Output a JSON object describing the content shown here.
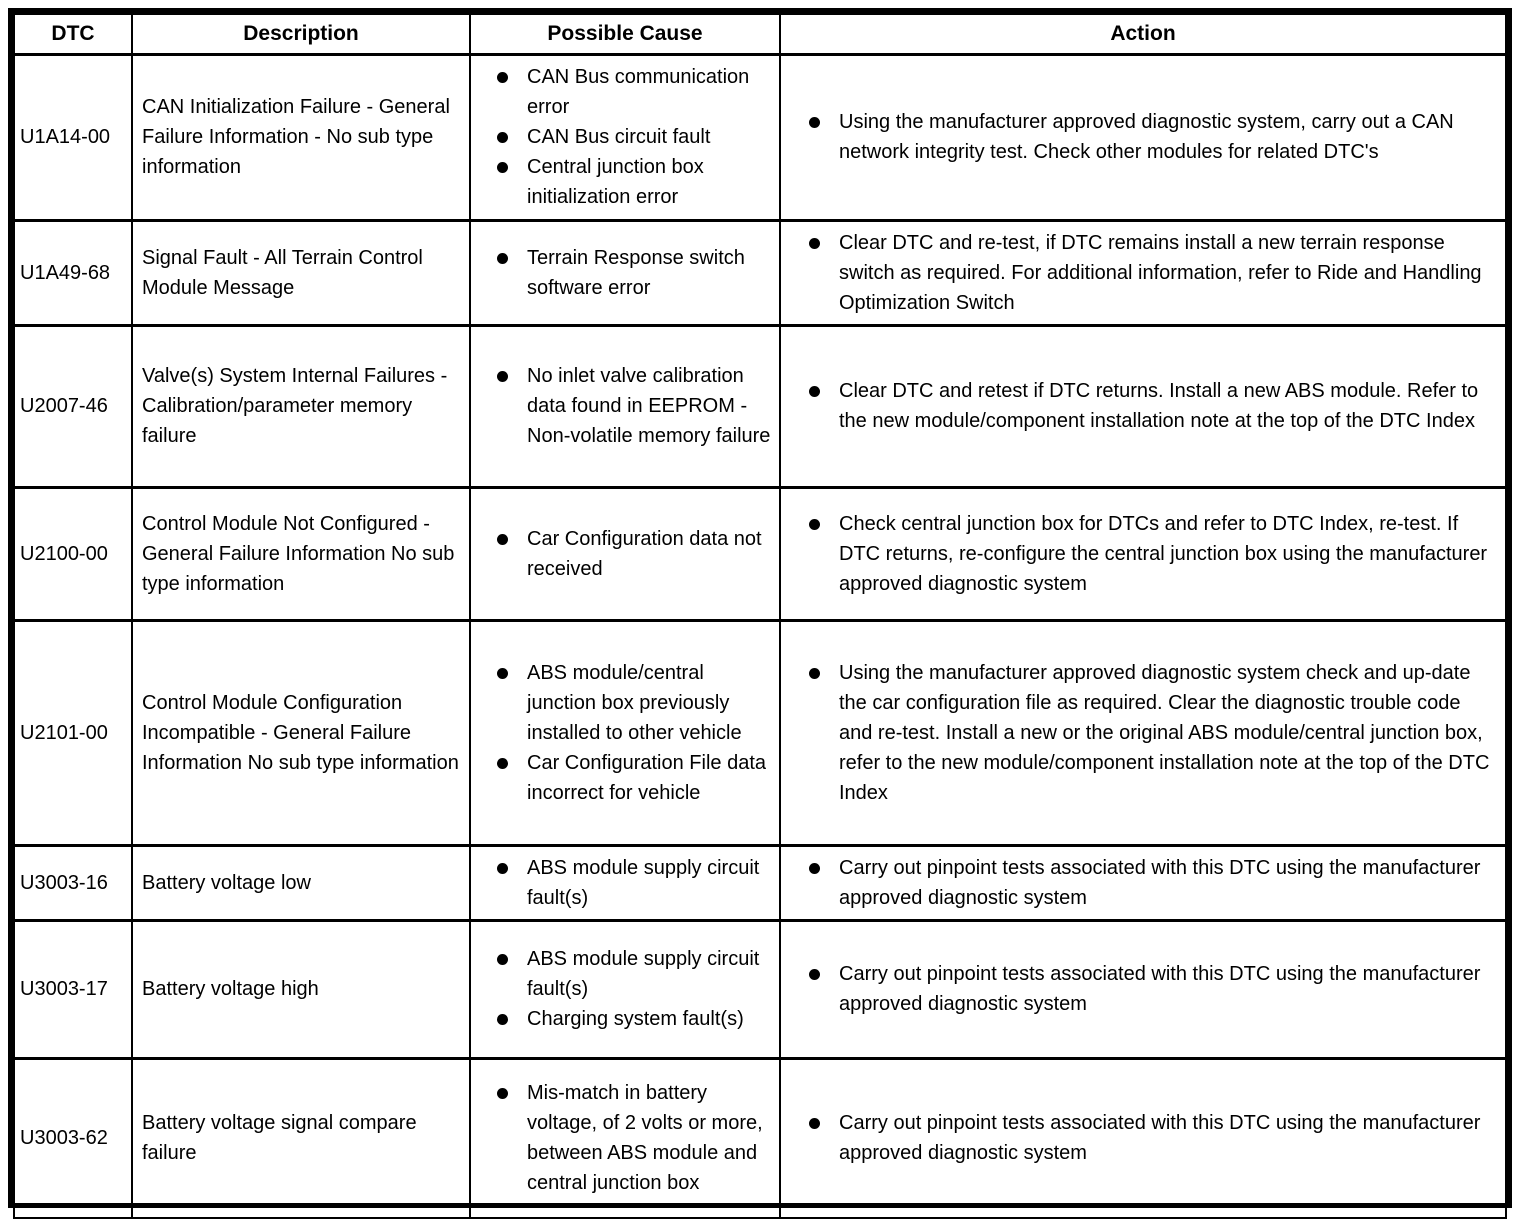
{
  "table": {
    "headers": [
      "DTC",
      "Description",
      "Possible Cause",
      "Action"
    ],
    "rows": [
      {
        "dtc": "U1A14-00",
        "description": "CAN Initialization Failure - General Failure Information - No sub type information",
        "causes": [
          "CAN Bus communication error",
          "CAN Bus circuit fault",
          "Central junction box initialization error"
        ],
        "actions": [
          "Using the manufacturer approved diagnostic system, carry out a CAN network integrity test. Check other modules for related DTC's"
        ]
      },
      {
        "dtc": "U1A49-68",
        "description": "Signal Fault - All Terrain Control Module Message",
        "causes": [
          "Terrain Response switch software error"
        ],
        "actions": [
          "Clear DTC and re-test, if DTC remains install a new terrain response switch as required. For additional information, refer to Ride and Handling Optimization Switch"
        ]
      },
      {
        "dtc": "U2007-46",
        "description": "Valve(s) System Internal Failures - Calibration/parameter memory failure",
        "causes": [
          "No inlet valve calibration data found in EEPROM - Non-volatile memory failure"
        ],
        "actions": [
          "Clear DTC and retest if DTC returns. Install a new ABS module. Refer to the new module/component installation note at the top of the DTC Index"
        ]
      },
      {
        "dtc": "U2100-00",
        "description": "Control Module Not Configured - General Failure Information No sub type information",
        "causes": [
          "Car Configuration data not received"
        ],
        "actions": [
          "Check central junction box for DTCs and refer to DTC Index, re-test. If DTC returns, re-configure the central junction box using the manufacturer approved diagnostic system"
        ]
      },
      {
        "dtc": "U2101-00",
        "description": "Control Module Configuration Incompatible - General Failure Information No sub type information",
        "causes": [
          "ABS module/central junction box previously installed to other vehicle",
          "Car Configuration File data incorrect for vehicle"
        ],
        "actions": [
          "Using the manufacturer approved diagnostic system check and up-date the car configuration file as required. Clear the diagnostic trouble code and re-test. Install a new or the original ABS module/central junction box, refer to the new module/component installation note at the top of the DTC Index"
        ]
      },
      {
        "dtc": "U3003-16",
        "description": "Battery voltage low",
        "causes": [
          "ABS module supply circuit fault(s)"
        ],
        "actions": [
          "Carry out pinpoint tests associated with this DTC using the manufacturer approved diagnostic system"
        ]
      },
      {
        "dtc": "U3003-17",
        "description": "Battery voltage high",
        "causes": [
          "ABS module supply circuit fault(s)",
          "Charging system fault(s)"
        ],
        "actions": [
          "Carry out pinpoint tests associated with this DTC using the manufacturer approved diagnostic system"
        ]
      },
      {
        "dtc": "U3003-62",
        "description": "Battery voltage signal compare failure",
        "causes": [
          "Mis-match in battery voltage, of 2 volts or more, between ABS module and central junction box"
        ],
        "actions": [
          "Carry out pinpoint tests associated with this DTC using the manufacturer approved diagnostic system"
        ]
      }
    ]
  }
}
